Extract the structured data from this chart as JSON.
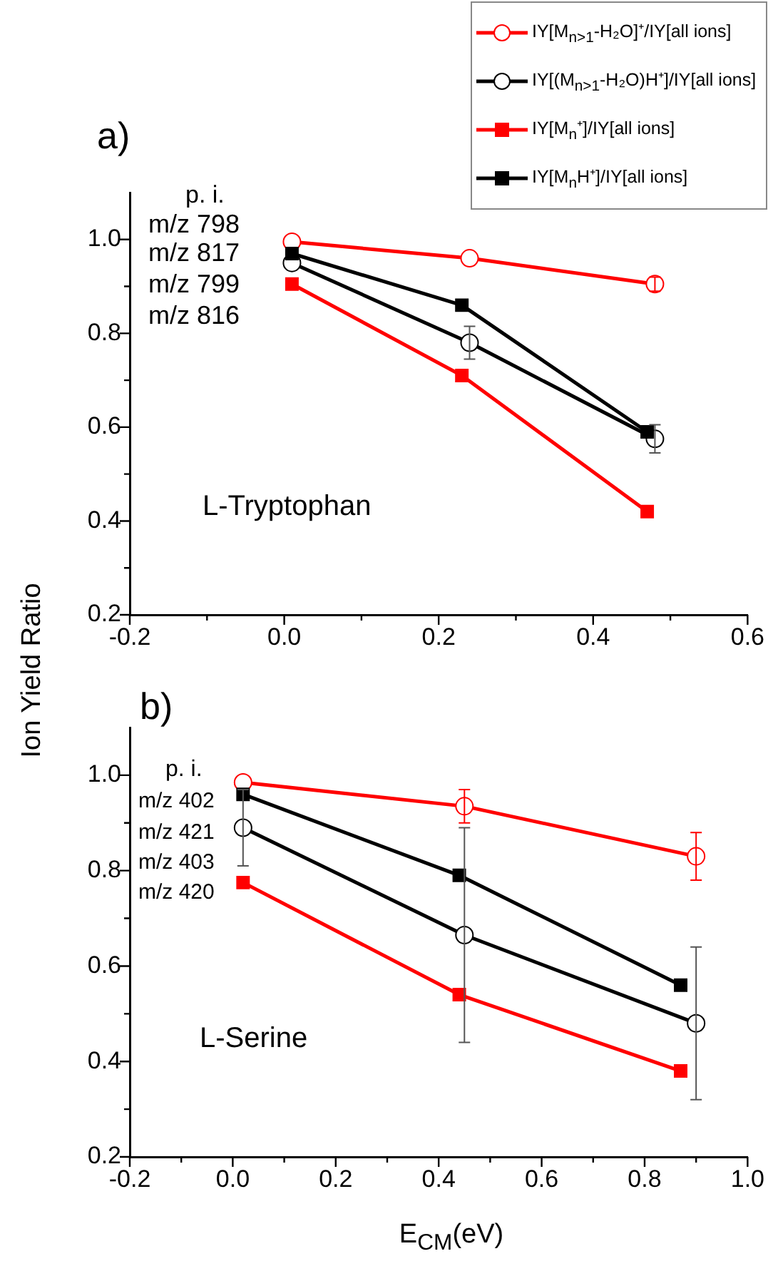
{
  "chart_data": [
    {
      "type": "line",
      "ylabel": "Ion Yield Ratio",
      "legend": "top right",
      "line_style": "solid",
      "xlim": [
        -0.2,
        0.6
      ],
      "xticks": [
        {
          "value": -0.2,
          "label": "-0.2"
        },
        {
          "value": -0.1,
          "label": null
        },
        {
          "value": 0,
          "label": "0.0"
        },
        {
          "value": 0.1,
          "label": null
        },
        {
          "value": 0.2,
          "label": "0.2"
        },
        {
          "value": 0.3,
          "label": null
        },
        {
          "value": 0.4,
          "label": "0.4"
        },
        {
          "value": 0.5,
          "label": null
        },
        {
          "value": 0.6,
          "label": "0.6"
        }
      ],
      "ylim": [
        0.2,
        1.1
      ],
      "yticks": [
        {
          "value": 0.2,
          "label": "0.2"
        },
        {
          "value": 0.3,
          "label": null
        },
        {
          "value": 0.4,
          "label": "0.4"
        },
        {
          "value": 0.5,
          "label": null
        },
        {
          "value": 0.6,
          "label": "0.6"
        },
        {
          "value": 0.7,
          "label": null
        },
        {
          "value": 0.8,
          "label": "0.8"
        },
        {
          "value": 0.9,
          "label": null
        },
        {
          "value": 1.0,
          "label": "1.0"
        }
      ],
      "annotations": [
        "a)",
        "p. i.",
        "m/z 798",
        "m/z 817",
        "m/z 799",
        "m/z 816",
        "L-Tryptophan"
      ],
      "series": [
        {
          "name": "IY[M$_{n>1}$-H₂O]⁺/IY[all ions]",
          "color": "#ff0000",
          "marker": "circle",
          "x": [
            0.01,
            0.24,
            0.48
          ],
          "values": [
            0.995,
            0.96,
            0.905
          ],
          "errors": [
            null,
            null,
            0.015
          ]
        },
        {
          "name": "IY[(M$_{n>1}$-H₂O)H⁺]/IY[all ions]",
          "color": "#000000",
          "marker": "circle",
          "x": [
            0.01,
            0.24,
            0.48
          ],
          "values": [
            0.95,
            0.78,
            0.575
          ],
          "errors": [
            null,
            0.035,
            0.03
          ]
        },
        {
          "name": "IY[M$_{n}$⁺]/IY[all ions]",
          "color": "#ff0000",
          "marker": "square",
          "x": [
            0.01,
            0.23,
            0.47
          ],
          "values": [
            0.905,
            0.71,
            0.42
          ]
        },
        {
          "name": "IY[M$_{n}$H⁺]/IY[all ions]",
          "color": "#000000",
          "marker": "square",
          "x": [
            0.01,
            0.23,
            0.47
          ],
          "values": [
            0.97,
            0.86,
            0.59
          ]
        }
      ]
    },
    {
      "type": "line",
      "xlabel": "E$_{CM}$(eV)",
      "legend": false,
      "line_style": "solid",
      "xlim": [
        -0.2,
        1.0
      ],
      "xticks": [
        {
          "value": -0.2,
          "label": "-0.2"
        },
        {
          "value": -0.1,
          "label": null
        },
        {
          "value": 0,
          "label": "0.0"
        },
        {
          "value": 0.1,
          "label": null
        },
        {
          "value": 0.2,
          "label": "0.2"
        },
        {
          "value": 0.3,
          "label": null
        },
        {
          "value": 0.4,
          "label": "0.4"
        },
        {
          "value": 0.5,
          "label": null
        },
        {
          "value": 0.6,
          "label": "0.6"
        },
        {
          "value": 0.7,
          "label": null
        },
        {
          "value": 0.8,
          "label": "0.8"
        },
        {
          "value": 0.9,
          "label": null
        },
        {
          "value": 1.0,
          "label": "1.0"
        }
      ],
      "ylim": [
        0.2,
        1.1
      ],
      "yticks": [
        {
          "value": 0.2,
          "label": "0.2"
        },
        {
          "value": 0.3,
          "label": null
        },
        {
          "value": 0.4,
          "label": "0.4"
        },
        {
          "value": 0.5,
          "label": null
        },
        {
          "value": 0.6,
          "label": "0.6"
        },
        {
          "value": 0.7,
          "label": null
        },
        {
          "value": 0.8,
          "label": "0.8"
        },
        {
          "value": 0.9,
          "label": null
        },
        {
          "value": 1.0,
          "label": "1.0"
        }
      ],
      "annotations": [
        "b)",
        "p. i.",
        "m/z 402",
        "m/z 421",
        "m/z 403",
        "m/z 420",
        "L-Serine"
      ],
      "series": [
        {
          "color": "#ff0000",
          "marker": "circle",
          "x": [
            0.02,
            0.45,
            0.9
          ],
          "values": [
            0.985,
            0.935,
            0.83
          ],
          "errors": [
            null,
            0.035,
            0.05
          ]
        },
        {
          "color": "#000000",
          "marker": "circle",
          "x": [
            0.02,
            0.45,
            0.9
          ],
          "values": [
            0.89,
            0.665,
            0.48
          ],
          "errors": [
            0.08,
            0.225,
            0.16
          ]
        },
        {
          "color": "#ff0000",
          "marker": "square",
          "x": [
            0.02,
            0.44,
            0.87
          ],
          "values": [
            0.775,
            0.54,
            0.38
          ]
        },
        {
          "color": "#000000",
          "marker": "square",
          "x": [
            0.02,
            0.44,
            0.87
          ],
          "values": [
            0.96,
            0.79,
            0.56
          ]
        }
      ]
    }
  ]
}
